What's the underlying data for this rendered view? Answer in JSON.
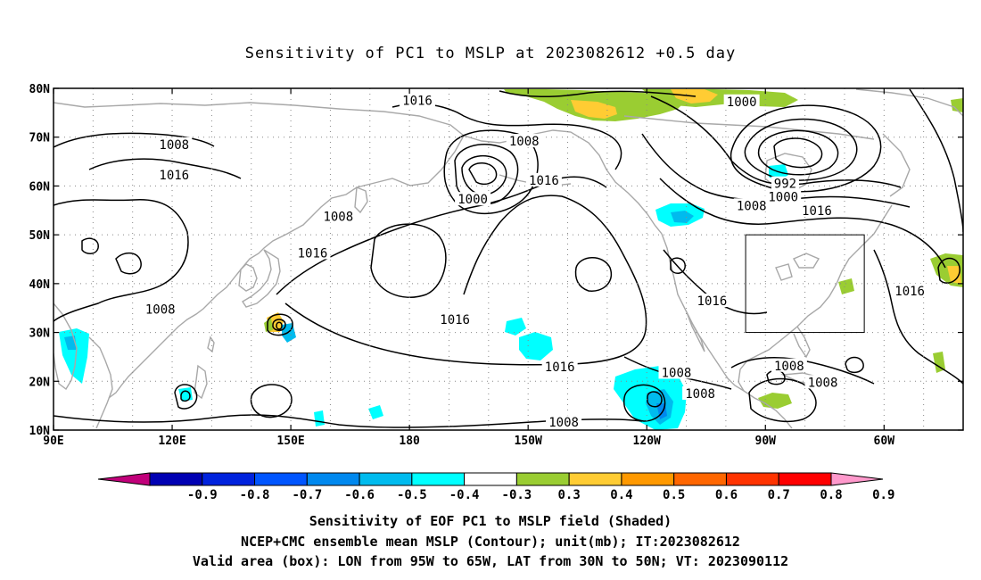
{
  "title": "Sensitivity of PC1 to MSLP at 2023082612 +0.5 day",
  "colors": {
    "coast": "#a8a8a8",
    "contour": "#000000",
    "grid": "#888888"
  },
  "map": {
    "lat_labels": [
      "80N",
      "70N",
      "60N",
      "50N",
      "40N",
      "30N",
      "20N",
      "10N"
    ],
    "lon_labels": [
      "90E",
      "120E",
      "150E",
      "180",
      "150W",
      "120W",
      "90W",
      "60W"
    ],
    "lon_range": [
      90,
      320
    ],
    "lat_range": [
      10,
      80
    ]
  },
  "contour_labels": [
    {
      "text": "1016",
      "lon": 182,
      "lat": 77.5
    },
    {
      "text": "1000",
      "lon": 264,
      "lat": 77.3
    },
    {
      "text": "1008",
      "lon": 120.5,
      "lat": 68.5
    },
    {
      "text": "1008",
      "lon": 209,
      "lat": 69.2
    },
    {
      "text": "1016",
      "lon": 120.5,
      "lat": 62.3
    },
    {
      "text": "992",
      "lon": 275,
      "lat": 60.5
    },
    {
      "text": "1016",
      "lon": 214,
      "lat": 61.2
    },
    {
      "text": "1000",
      "lon": 274.5,
      "lat": 57.8
    },
    {
      "text": "1000",
      "lon": 196,
      "lat": 57.3
    },
    {
      "text": "1008",
      "lon": 266.5,
      "lat": 56
    },
    {
      "text": "1016",
      "lon": 283,
      "lat": 55
    },
    {
      "text": "1008",
      "lon": 162,
      "lat": 53.8
    },
    {
      "text": "1016",
      "lon": 155.5,
      "lat": 46.3
    },
    {
      "text": "1016",
      "lon": 306.5,
      "lat": 38.5
    },
    {
      "text": "1016",
      "lon": 256.5,
      "lat": 36.5
    },
    {
      "text": "1008",
      "lon": 117,
      "lat": 34.8
    },
    {
      "text": "1016",
      "lon": 191.5,
      "lat": 32.7
    },
    {
      "text": "1016",
      "lon": 218,
      "lat": 23
    },
    {
      "text": "1008",
      "lon": 276,
      "lat": 23.2
    },
    {
      "text": "1008",
      "lon": 247.5,
      "lat": 21.8
    },
    {
      "text": "1008",
      "lon": 284.5,
      "lat": 19.8
    },
    {
      "text": "1008",
      "lon": 253.5,
      "lat": 17.5
    },
    {
      "text": "1008",
      "lon": 219,
      "lat": 11.6
    }
  ],
  "colorbar": {
    "labels": [
      "-0.9",
      "-0.8",
      "-0.7",
      "-0.6",
      "-0.5",
      "-0.4",
      "-0.3",
      "0.3",
      "0.4",
      "0.5",
      "0.6",
      "0.7",
      "0.8",
      "0.9"
    ],
    "colors": [
      "#c1007a",
      "#0000b3",
      "#0022dd",
      "#0055ff",
      "#0088ee",
      "#00bbee",
      "#00ffff",
      "#ffffff",
      "#9acd32",
      "#ffcc33",
      "#ff9900",
      "#ff6600",
      "#ff3300",
      "#ff0000",
      "#ff99cc"
    ]
  },
  "valid_box": {
    "lon_min": 265,
    "lon_max": 295,
    "lat_min": 30,
    "lat_max": 50
  },
  "captions": [
    "Sensitivity of EOF PC1 to MSLP field (Shaded)",
    "NCEP+CMC ensemble mean MSLP (Contour); unit(mb); IT:2023082612",
    "Valid area (box): LON from 95W to 65W, LAT from 30N to 50N; VT: 2023090112"
  ]
}
